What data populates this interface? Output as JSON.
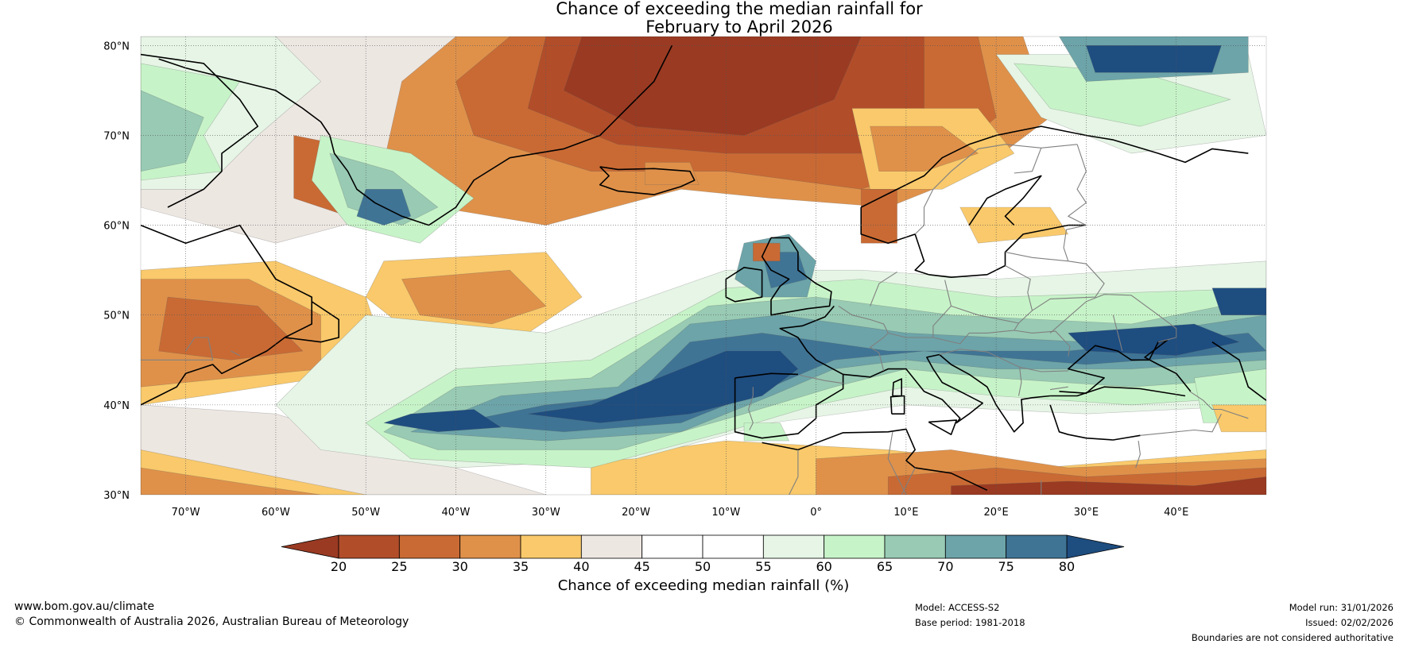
{
  "title": {
    "line1": "Chance of exceeding the median rainfall for",
    "line2": "February to April 2026"
  },
  "map": {
    "lon_range": [
      -75,
      50
    ],
    "lat_range": [
      30,
      81
    ],
    "lat_labels": [
      "80°N",
      "70°N",
      "60°N",
      "50°N",
      "40°N",
      "30°N"
    ],
    "lon_labels": [
      "70°W",
      "60°W",
      "50°W",
      "40°W",
      "30°W",
      "20°W",
      "10°W",
      "0°",
      "10°E",
      "20°E",
      "30°E",
      "40°E"
    ],
    "palette": {
      "dark_brown": "#9a3a22",
      "brown": "#b24d2a",
      "rust": "#c96a34",
      "orange": "#df914a",
      "yellow": "#f9c96b",
      "light_grey": "#ede7e2",
      "white": "#ffffff",
      "pale_green": "#e6f5e6",
      "light_green": "#c7f3c8",
      "teal_green": "#98cab4",
      "teal": "#6ca4a9",
      "steel_blue": "#3f7495",
      "dark_blue": "#1e4d80",
      "coast": "#000000",
      "border": "#808080"
    }
  },
  "colorbar": {
    "colors": [
      "#b24d2a",
      "#c96a34",
      "#df914a",
      "#f9c96b",
      "#ede7e2",
      "#ffffff",
      "#ffffff",
      "#e6f5e6",
      "#c7f3c8",
      "#98cab4",
      "#6ca4a9",
      "#3f7495"
    ],
    "under_color": "#9a3a22",
    "over_color": "#1e4d80",
    "ticks": [
      "20",
      "25",
      "30",
      "35",
      "40",
      "45",
      "50",
      "55",
      "60",
      "65",
      "70",
      "75",
      "80"
    ],
    "label": "Chance of exceeding median rainfall (%)"
  },
  "footer": {
    "website": "www.bom.gov.au/climate",
    "copyright": "© Commonwealth of Australia 2026, Australian Bureau of Meteorology",
    "model": "Model: ACCESS-S2",
    "base_period": "Base period: 1981-2018",
    "model_run": "Model run: 31/01/2026",
    "issued": "Issued: 02/02/2026",
    "disclaimer": "Boundaries are not considered authoritative"
  }
}
